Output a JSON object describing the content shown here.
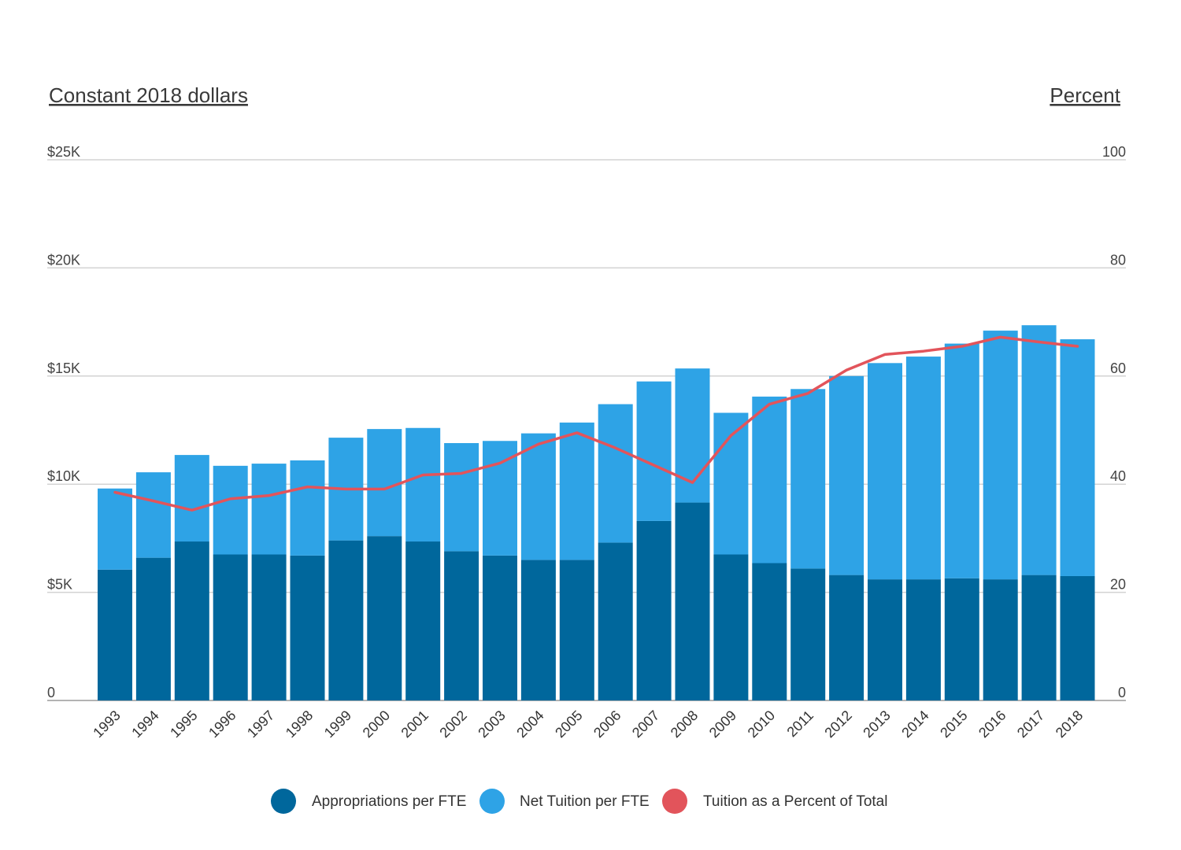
{
  "chart_data": {
    "type": "bar",
    "stacked": true,
    "left_axis_title": "Constant 2018 dollars",
    "right_axis_title": "Percent",
    "left_ticks": [
      "0",
      "$5K",
      "$10K",
      "$15K",
      "$20K",
      "$25K"
    ],
    "right_ticks": [
      "0",
      "20",
      "40",
      "60",
      "80",
      "100"
    ],
    "ylim_left": [
      0,
      25000
    ],
    "ylim_right": [
      0,
      100
    ],
    "grid": true,
    "legend_position": "bottom-center",
    "categories": [
      "1993",
      "1994",
      "1995",
      "1996",
      "1997",
      "1998",
      "1999",
      "2000",
      "2001",
      "2002",
      "2003",
      "2004",
      "2005",
      "2006",
      "2007",
      "2008",
      "2009",
      "2010",
      "2011",
      "2012",
      "2013",
      "2014",
      "2015",
      "2016",
      "2017",
      "2018"
    ],
    "series": [
      {
        "name": "Appropriations per FTE",
        "type": "bar",
        "axis": "left",
        "color": "#00679c",
        "values": [
          6050,
          6600,
          7350,
          6750,
          6750,
          6700,
          7400,
          7600,
          7350,
          6900,
          6700,
          6500,
          6500,
          7300,
          8300,
          9150,
          6750,
          6350,
          6100,
          5800,
          5600,
          5600,
          5650,
          5600,
          5800,
          5750
        ]
      },
      {
        "name": "Net Tuition per FTE",
        "type": "bar",
        "axis": "left",
        "color": "#2ea3e6",
        "values": [
          3750,
          3950,
          4000,
          4100,
          4200,
          4400,
          4750,
          4950,
          5250,
          5000,
          5300,
          5850,
          6350,
          6400,
          6450,
          6200,
          6550,
          7700,
          8300,
          9200,
          10000,
          10300,
          10850,
          11500,
          11550,
          10950
        ]
      },
      {
        "name": "Tuition as a Percent of Total",
        "type": "line",
        "axis": "right",
        "color": "#e2545b",
        "values": [
          38.5,
          36.9,
          35.2,
          37.3,
          37.9,
          39.5,
          39.1,
          39.1,
          41.7,
          42.0,
          43.9,
          47.4,
          49.5,
          46.7,
          43.5,
          40.3,
          49.0,
          54.8,
          56.8,
          61.1,
          64.0,
          64.6,
          65.5,
          67.2,
          66.3,
          65.5
        ]
      }
    ]
  }
}
